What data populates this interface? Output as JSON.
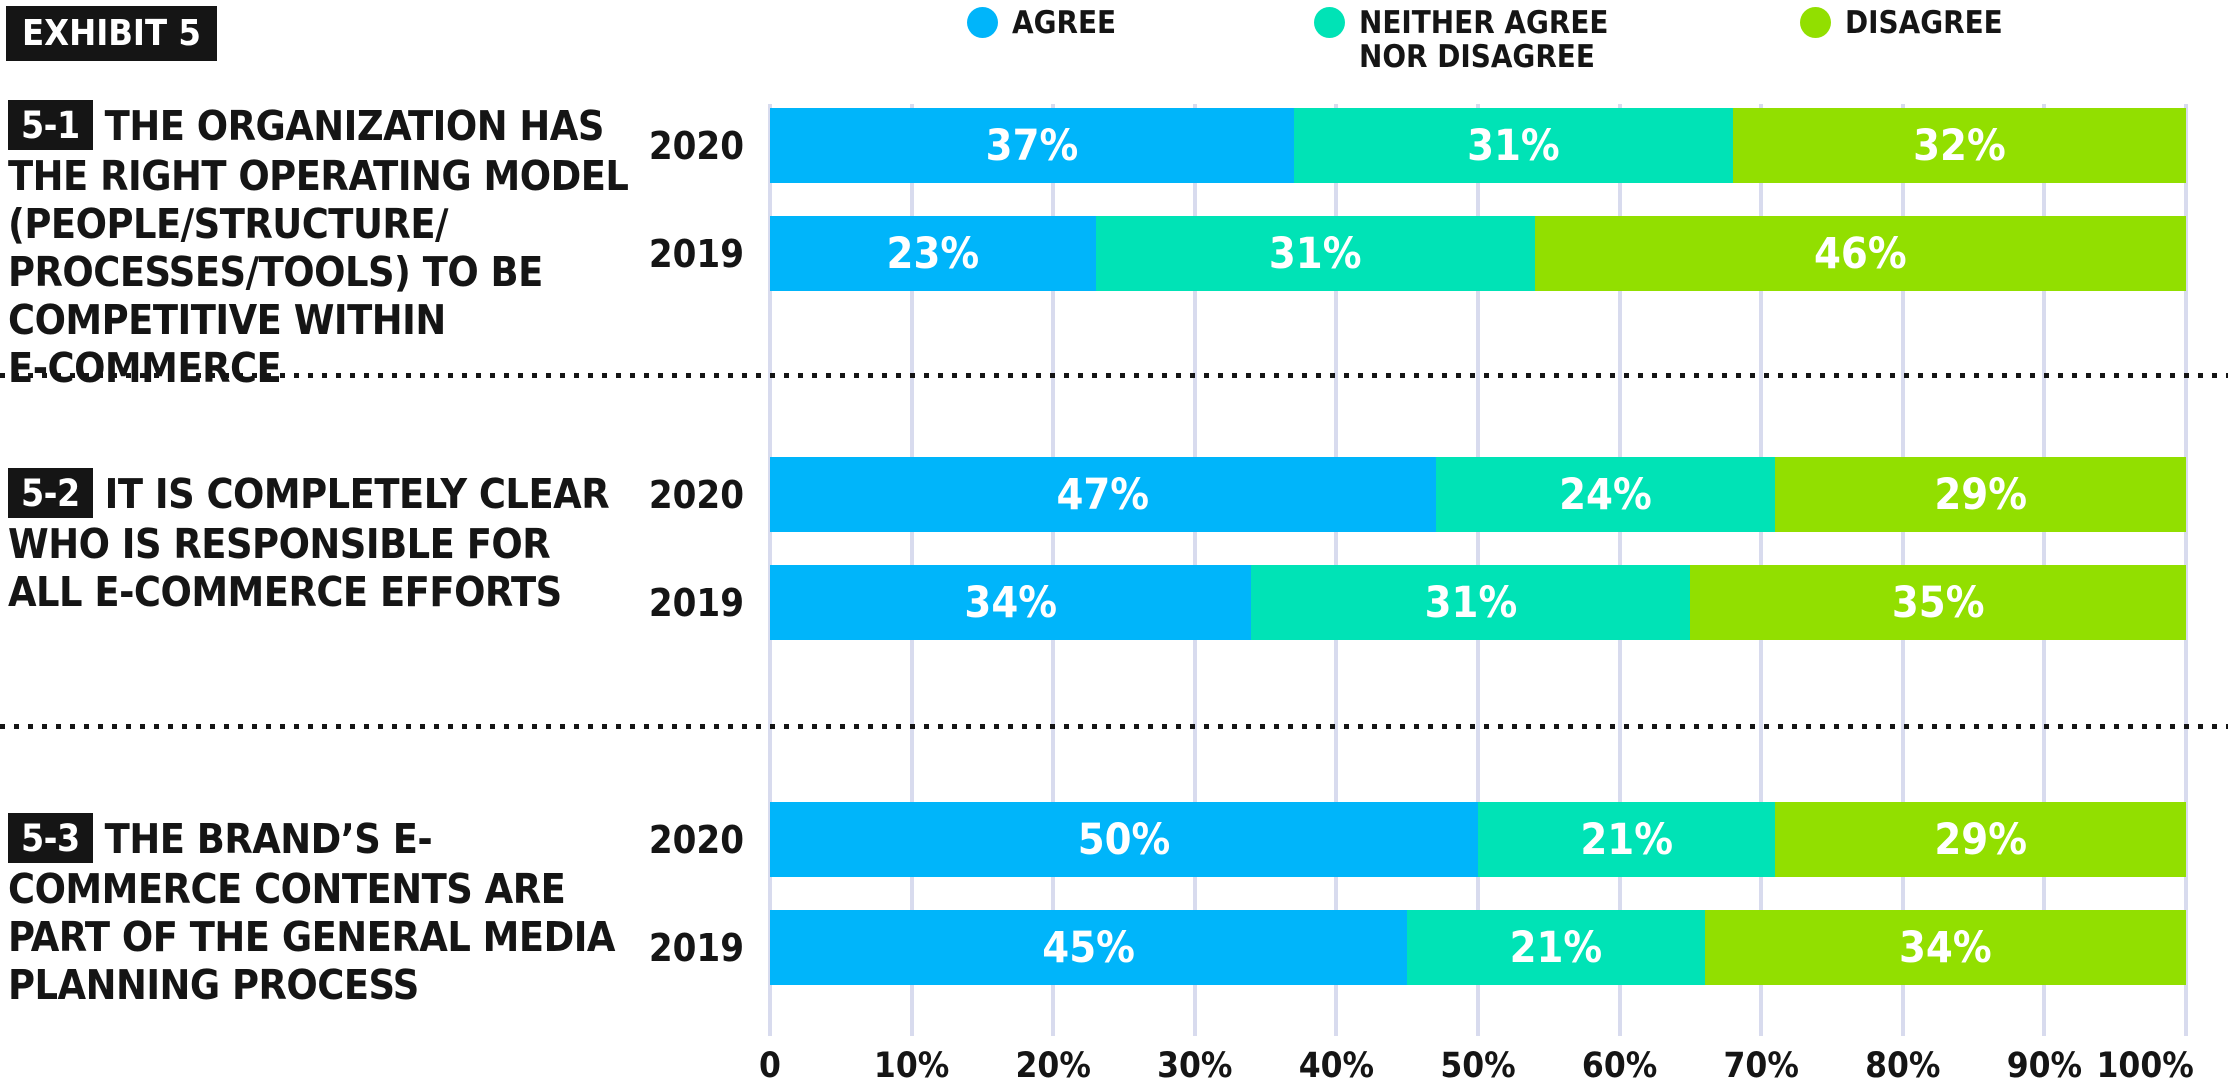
{
  "exhibit_label": "EXHIBIT 5",
  "legend": [
    {
      "name": "agree",
      "label_lines": [
        "AGREE"
      ],
      "color": "#00B5FA"
    },
    {
      "name": "neither-agree-nor-disagree",
      "label_lines": [
        "NEITHER AGREE",
        "NOR DISAGREE"
      ],
      "color": "#00E3B6"
    },
    {
      "name": "disagree",
      "label_lines": [
        "DISAGREE"
      ],
      "color": "#92DF00"
    }
  ],
  "chart_data": {
    "type": "bar",
    "orientation": "horizontal",
    "stacked": true,
    "unit": "%",
    "series": [
      "AGREE",
      "NEITHER AGREE NOR DISAGREE",
      "DISAGREE"
    ],
    "series_colors": [
      "#00B5FA",
      "#00E3B6",
      "#92DF00"
    ],
    "x_axis": {
      "range": [
        0,
        100
      ],
      "tick_labels": [
        "0",
        "10%",
        "20%",
        "30%",
        "40%",
        "50%",
        "60%",
        "70%",
        "80%",
        "90%",
        "100%"
      ],
      "grid": true,
      "gridline_color": "#D8DBEE"
    },
    "groups": [
      {
        "id": "5-1",
        "question_lines": [
          "THE ORGANIZATION HAS",
          "THE RIGHT OPERATING MODEL",
          "(PEOPLE/STRUCTURE/",
          "PROCESSES/TOOLS) TO BE",
          "COMPETITIVE WITHIN",
          "E-COMMERCE"
        ],
        "rows": [
          {
            "year": "2020",
            "values": [
              37,
              31,
              32
            ],
            "labels": [
              "37%",
              "31%",
              "32%"
            ]
          },
          {
            "year": "2019",
            "values": [
              23,
              31,
              46
            ],
            "labels": [
              "23%",
              "31%",
              "46%"
            ]
          }
        ]
      },
      {
        "id": "5-2",
        "question_lines": [
          "IT IS COMPLETELY CLEAR",
          "WHO IS RESPONSIBLE FOR",
          "ALL E-COMMERCE EFFORTS"
        ],
        "rows": [
          {
            "year": "2020",
            "values": [
              47,
              24,
              29
            ],
            "labels": [
              "47%",
              "24%",
              "29%"
            ]
          },
          {
            "year": "2019",
            "values": [
              34,
              31,
              35
            ],
            "labels": [
              "34%",
              "31%",
              "35%"
            ]
          }
        ]
      },
      {
        "id": "5-3",
        "question_lines": [
          "THE BRAND’S E-",
          "COMMERCE CONTENTS ARE",
          "PART OF THE GENERAL MEDIA",
          "PLANNING PROCESS"
        ],
        "rows": [
          {
            "year": "2020",
            "values": [
              50,
              21,
              29
            ],
            "labels": [
              "50%",
              "21%",
              "29%"
            ]
          },
          {
            "year": "2019",
            "values": [
              45,
              21,
              34
            ],
            "labels": [
              "45%",
              "21%",
              "34%"
            ]
          }
        ]
      }
    ]
  }
}
